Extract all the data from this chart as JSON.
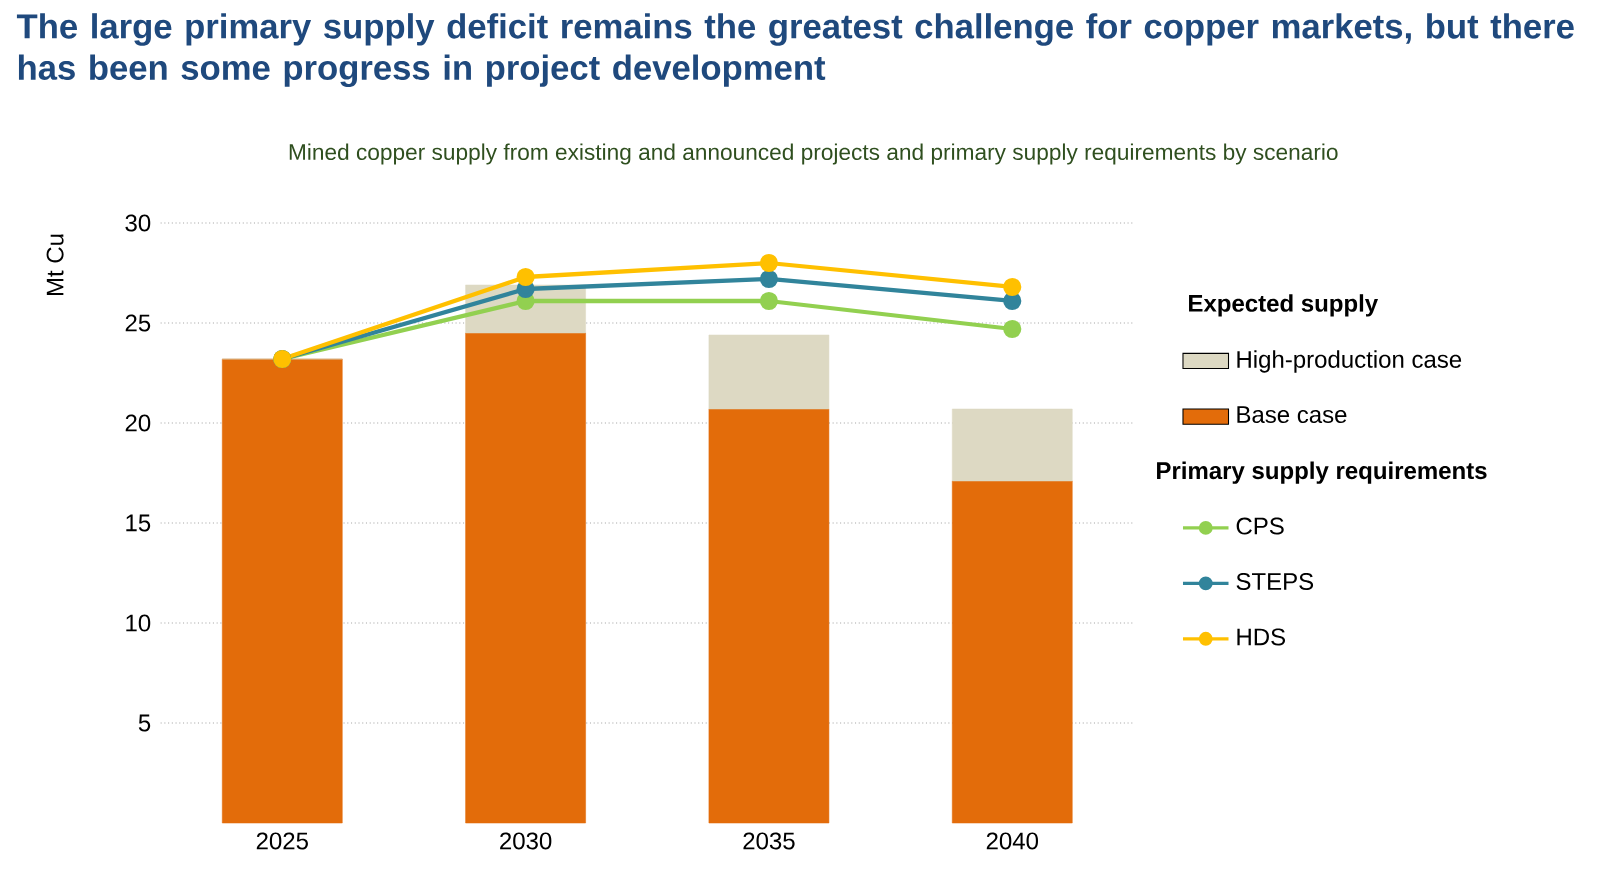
{
  "chart_data": {
    "type": "bar",
    "title": "The large primary supply deficit remains the greatest challenge for copper markets, but there has been some progress in project development",
    "subtitle": "Mined copper supply from existing and announced projects and primary supply requirements by scenario",
    "ylabel": "Mt Cu",
    "legend_title": "Expected supply",
    "annotations": [
      "Primary supply requirements"
    ],
    "categories": [
      "2025",
      "2030",
      "2035",
      "2040"
    ],
    "stacked": true,
    "series": [
      {
        "name": "Base case",
        "color": "#e36c0a",
        "values": [
          23.2,
          24.5,
          20.7,
          17.1
        ]
      },
      {
        "name": "High-production case",
        "color": "#ddd9c3",
        "values": [
          0,
          2.4,
          3.7,
          3.6
        ]
      },
      {
        "name": "CPS",
        "type": "line",
        "color": "#92d050",
        "values": [
          23.2,
          26.1,
          26.1,
          24.7
        ]
      },
      {
        "name": "STEPS",
        "type": "line",
        "color": "#31849b",
        "values": [
          23.2,
          26.7,
          27.2,
          26.1
        ]
      },
      {
        "name": "HDS",
        "type": "line",
        "color": "#ffc000",
        "values": [
          23.2,
          27.3,
          28.0,
          26.8
        ]
      }
    ],
    "ylim": [
      0,
      30
    ],
    "yticks": [
      5,
      10,
      15,
      20,
      25,
      30
    ],
    "grid": "y",
    "legend": "right",
    "marker": "circle"
  }
}
